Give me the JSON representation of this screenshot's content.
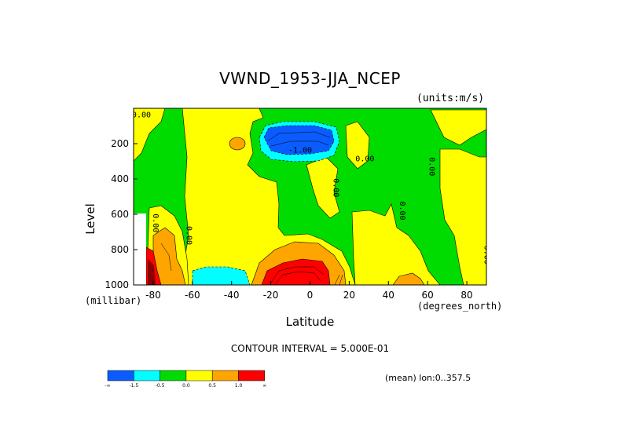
{
  "chart_data": {
    "type": "heatmap",
    "title": "VWND_1953-JJA_NCEP",
    "units": "(units:m/s)",
    "xlabel": "Latitude",
    "x_unit": "(degrees_north)",
    "ylabel": "Level",
    "y_unit": "(millibar)",
    "xlim": [
      -90,
      90
    ],
    "ylim": [
      1000,
      0
    ],
    "x_ticks": [
      "-80",
      "-60",
      "-40",
      "-20",
      "0",
      "20",
      "40",
      "60",
      "80"
    ],
    "x_tick_values": [
      -80,
      -60,
      -40,
      -20,
      0,
      20,
      40,
      60,
      80
    ],
    "y_ticks": [
      "200",
      "400",
      "600",
      "800",
      "1000"
    ],
    "y_tick_values": [
      200,
      400,
      600,
      800,
      1000
    ],
    "contour_interval": "CONTOUR INTERVAL = 5.000E-01",
    "mean_lon": "(mean) lon:0..357.5",
    "levels": [
      -1.5,
      -0.5,
      0.0,
      0.5,
      1.0
    ],
    "colorbar": {
      "colors": [
        "#0a5cff",
        "#00ffff",
        "#00dc00",
        "#ffff00",
        "#ffa500",
        "#ff0000"
      ],
      "labels": [
        "-∞",
        "-1.5",
        "-0.5",
        "0.0",
        "0.5",
        "1.0",
        "∞"
      ]
    },
    "contour_labels": [
      {
        "text": "0.00",
        "x": -86,
        "y": 50
      },
      {
        "text": "0.00",
        "x": -80,
        "y": 650
      },
      {
        "text": "0.00",
        "x": -63,
        "y": 720
      },
      {
        "text": "-1.00",
        "x": -5,
        "y": 250
      },
      {
        "text": "0.00",
        "x": 12,
        "y": 450
      },
      {
        "text": "0.00",
        "x": 28,
        "y": 300
      },
      {
        "text": "0.00",
        "x": 46,
        "y": 580
      },
      {
        "text": "0.00",
        "x": 61,
        "y": 330
      },
      {
        "text": "0.00",
        "x": 89,
        "y": 830
      }
    ]
  },
  "field_legend": {
    "shading": "filled contours of meridional wind over latitude-pressure"
  }
}
